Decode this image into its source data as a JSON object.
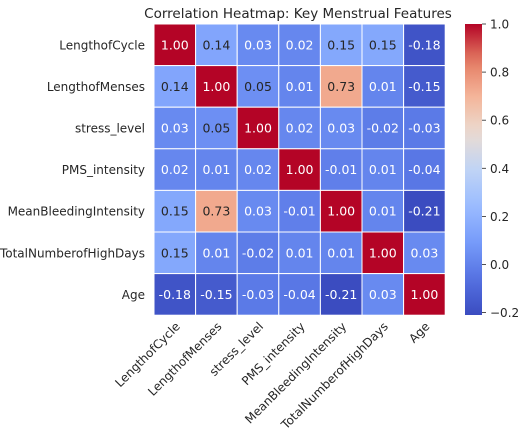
{
  "chart_data": {
    "type": "heatmap",
    "title": "Correlation Heatmap: Key Menstrual Features",
    "xlabel": "",
    "ylabel": "",
    "categories": [
      "LengthofCycle",
      "LengthofMenses",
      "stress_level",
      "PMS_intensity",
      "MeanBleedingIntensity",
      "TotalNumberofHighDays",
      "Age"
    ],
    "matrix": [
      [
        1.0,
        0.14,
        0.03,
        0.02,
        0.15,
        0.15,
        -0.18
      ],
      [
        0.14,
        1.0,
        0.05,
        0.01,
        0.73,
        0.01,
        -0.15
      ],
      [
        0.03,
        0.05,
        1.0,
        0.02,
        0.03,
        -0.02,
        -0.03
      ],
      [
        0.02,
        0.01,
        0.02,
        1.0,
        -0.01,
        0.01,
        -0.04
      ],
      [
        0.15,
        0.73,
        0.03,
        -0.01,
        1.0,
        0.01,
        -0.21
      ],
      [
        0.15,
        0.01,
        -0.02,
        0.01,
        0.01,
        1.0,
        0.03
      ],
      [
        -0.18,
        -0.15,
        -0.03,
        -0.04,
        -0.21,
        0.03,
        1.0
      ]
    ],
    "annotations_format": "0.00",
    "colormap": "coolwarm",
    "vmin": -0.21,
    "vmax": 1.0,
    "colorbar_ticks": [
      -0.2,
      0.0,
      0.2,
      0.4,
      0.6,
      0.8,
      1.0
    ],
    "colorbar_tick_labels": [
      "−0.2",
      "0.0",
      "0.2",
      "0.4",
      "0.6",
      "0.8",
      "1.0"
    ],
    "grid_line_color": "#ffffff",
    "legend": "colorbar-right"
  }
}
